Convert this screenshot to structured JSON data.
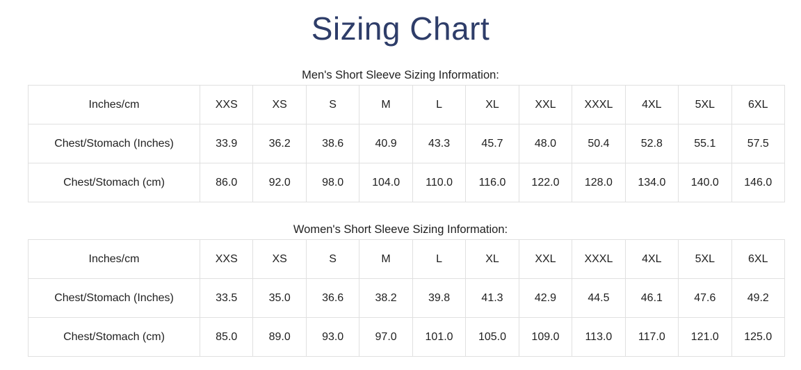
{
  "page": {
    "title": "Sizing Chart"
  },
  "colors": {
    "title": "#2e3d69",
    "text": "#1f1f1f",
    "table_border": "#e0e0e0",
    "background": "#ffffff"
  },
  "tables": [
    {
      "caption": "Men's Short Sleeve Sizing Information:",
      "header": [
        "Inches/cm",
        "XXS",
        "XS",
        "S",
        "M",
        "L",
        "XL",
        "XXL",
        "XXXL",
        "4XL",
        "5XL",
        "6XL"
      ],
      "rows": [
        [
          "Chest/Stomach (Inches)",
          "33.9",
          "36.2",
          "38.6",
          "40.9",
          "43.3",
          "45.7",
          "48.0",
          "50.4",
          "52.8",
          "55.1",
          "57.5"
        ],
        [
          "Chest/Stomach (cm)",
          "86.0",
          "92.0",
          "98.0",
          "104.0",
          "110.0",
          "116.0",
          "122.0",
          "128.0",
          "134.0",
          "140.0",
          "146.0"
        ]
      ]
    },
    {
      "caption": "Women's Short Sleeve Sizing Information:",
      "header": [
        "Inches/cm",
        "XXS",
        "XS",
        "S",
        "M",
        "L",
        "XL",
        "XXL",
        "XXXL",
        "4XL",
        "5XL",
        "6XL"
      ],
      "rows": [
        [
          "Chest/Stomach (Inches)",
          "33.5",
          "35.0",
          "36.6",
          "38.2",
          "39.8",
          "41.3",
          "42.9",
          "44.5",
          "46.1",
          "47.6",
          "49.2"
        ],
        [
          "Chest/Stomach (cm)",
          "85.0",
          "89.0",
          "93.0",
          "97.0",
          "101.0",
          "105.0",
          "109.0",
          "113.0",
          "117.0",
          "121.0",
          "125.0"
        ]
      ]
    }
  ]
}
